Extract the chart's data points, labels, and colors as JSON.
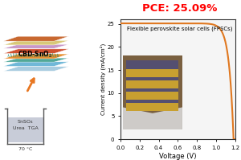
{
  "title": "PCE: 25.09%",
  "title_color": "#FF0000",
  "title_fontsize": 9.5,
  "xlabel": "Voltage (V)",
  "ylabel": "Current density (mA/cm²)",
  "xlim": [
    0.0,
    1.2
  ],
  "ylim": [
    0,
    26
  ],
  "xticks": [
    0.0,
    0.2,
    0.4,
    0.6,
    0.8,
    1.0,
    1.2
  ],
  "yticks": [
    0,
    5,
    10,
    15,
    20,
    25
  ],
  "jsc": 25.1,
  "voc": 1.185,
  "curve_color": "#E07820",
  "curve_linewidth": 1.5,
  "annotation": "Flexible perovskite solar cells (FPSCs)",
  "annotation_fontsize": 5.0,
  "background_color": "#ffffff",
  "plot_bg_color": "#f5f5f5",
  "figsize": [
    3.0,
    1.99
  ],
  "dpi": 100,
  "layer_colors": [
    "#a0c8e8",
    "#6ab0d8",
    "#48b89a",
    "#f5a030",
    "#f5a030",
    "#e05050",
    "#c896c8",
    "#e8d090",
    "#e8a060"
  ],
  "beaker_bg": "#d8dde8",
  "beaker_liquid": "#c8ccd8",
  "arrow_color": "#E87722"
}
